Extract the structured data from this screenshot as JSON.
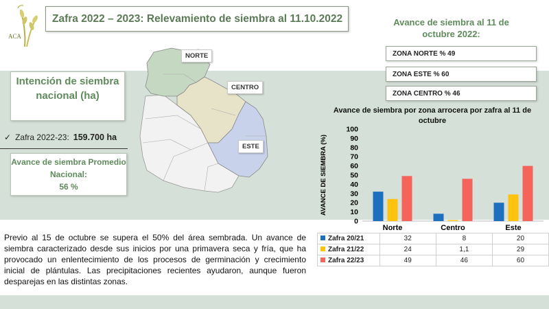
{
  "header": {
    "title": "Zafra 2022 – 2023: Relevamiento de siembra al 11.10.2022",
    "logo_text": "ACA"
  },
  "advance_heading": "Avance de siembra al 11 de octubre 2022:",
  "zones": [
    {
      "label": "ZONA NORTE % 49"
    },
    {
      "label": "ZONA ESTE  % 60"
    },
    {
      "label": "ZONA CENTRO % 46"
    }
  ],
  "intention": {
    "title": "Intención de siembra nacional (ha)",
    "season_label": "Zafra 2022-23:",
    "season_value": "159.700 ha",
    "check": "✓"
  },
  "national_average": {
    "title": "Avance de siembra Promedio Nacional:",
    "value": "56 %"
  },
  "map": {
    "labels": {
      "norte": "NORTE",
      "centro": "CENTRO",
      "este": "ESTE"
    },
    "colors": {
      "norte": "#c5d8c2",
      "centro": "#e7e3c8",
      "este": "#c8d2ea",
      "other": "#f2f2f2"
    }
  },
  "paragraph": "Previo al 15 de octubre se supera el 50% del área sembrada. Un avance de siembra caracterizado desde sus inicios por una primavera seca y fría, que ha provocado un enlentecimiento de los procesos de germinación y crecimiento inicial de plántulas. Las precipitaciones recientes ayudaron, aunque fueron desparejas en las distintas zonas.",
  "chart_data": {
    "type": "bar",
    "title": "Avance de siembra por zona arrocera por zafra al 11 de octubre",
    "ylabel": "AVANCE DE SIEMBRA (%)",
    "xlabel": "",
    "ylim": [
      0,
      100
    ],
    "yticks": [
      0,
      10,
      20,
      30,
      40,
      50,
      60,
      70,
      80,
      90,
      100
    ],
    "categories": [
      "Norte",
      "Centro",
      "Este"
    ],
    "series": [
      {
        "name": "Zafra 20/21",
        "values": [
          32,
          8,
          20
        ],
        "labels": [
          "32",
          "8",
          "20"
        ],
        "color": "#1f6fbf"
      },
      {
        "name": "Zafra 21/22",
        "values": [
          24,
          1.1,
          29
        ],
        "labels": [
          "24",
          "1,1",
          "29"
        ],
        "color": "#ffc20e"
      },
      {
        "name": "Zafra 22/23",
        "values": [
          49,
          46,
          60
        ],
        "labels": [
          "49",
          "46",
          "60"
        ],
        "color": "#f4645a"
      }
    ],
    "grid": false,
    "legend": "data-table"
  }
}
